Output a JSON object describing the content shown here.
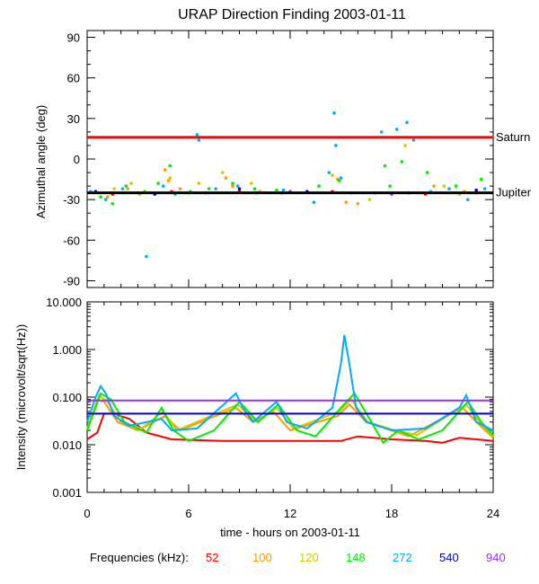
{
  "chart_data": [
    {
      "type": "scatter",
      "title": "URAP Direction Finding  2003-01-11",
      "xlabel": "",
      "ylabel": "Azimuthal angle (deg)",
      "xlim": [
        0,
        24
      ],
      "ylim": [
        -95,
        95
      ],
      "yticks": [
        90,
        60,
        30,
        0,
        -30,
        -60,
        -90
      ],
      "yticklabels": [
        "90",
        "60",
        "30",
        "0",
        "-30",
        "-60",
        "-90"
      ],
      "reference_lines": [
        {
          "name": "Saturn",
          "label": "Saturn",
          "y": 16,
          "color": "#ff0000"
        },
        {
          "name": "Jupiter",
          "label": "Jupiter",
          "y": -25,
          "color": "#000000"
        }
      ],
      "series": [
        {
          "name": "52",
          "color": "#ff0000",
          "points": [
            [
              1.5,
              -26
            ],
            [
              3.0,
              -25
            ],
            [
              5.0,
              -24
            ],
            [
              7.0,
              -25
            ],
            [
              9.0,
              -24
            ],
            [
              11.5,
              -25
            ],
            [
              14.5,
              -24
            ],
            [
              17.0,
              -25
            ],
            [
              20.0,
              -26
            ],
            [
              23.0,
              -25
            ]
          ]
        },
        {
          "name": "100",
          "color": "#ff9900",
          "points": [
            [
              1.2,
              -28
            ],
            [
              2.4,
              -22
            ],
            [
              4.6,
              -8
            ],
            [
              4.8,
              -16
            ],
            [
              5.5,
              -22
            ],
            [
              8.2,
              -14
            ],
            [
              8.6,
              -20
            ],
            [
              10.2,
              -24
            ],
            [
              14.8,
              -15
            ],
            [
              15.3,
              -32
            ],
            [
              16.0,
              -33
            ],
            [
              20.5,
              -20
            ],
            [
              22.3,
              -24
            ]
          ]
        },
        {
          "name": "120",
          "color": "#cccc00",
          "points": [
            [
              1.6,
              -22
            ],
            [
              2.6,
              -18
            ],
            [
              3.1,
              -26
            ],
            [
              4.9,
              -14
            ],
            [
              6.6,
              -18
            ],
            [
              8.0,
              -10
            ],
            [
              9.7,
              -18
            ],
            [
              14.5,
              -12
            ],
            [
              16.7,
              -30
            ],
            [
              18.8,
              10
            ],
            [
              21.1,
              -20
            ],
            [
              22.0,
              -26
            ]
          ]
        },
        {
          "name": "148",
          "color": "#00ee00",
          "points": [
            [
              0.8,
              -28
            ],
            [
              1.5,
              -33
            ],
            [
              2.3,
              -20
            ],
            [
              3.4,
              -24
            ],
            [
              4.2,
              -18
            ],
            [
              4.9,
              -5
            ],
            [
              6.1,
              -24
            ],
            [
              7.2,
              -22
            ],
            [
              8.6,
              -18
            ],
            [
              9.9,
              -22
            ],
            [
              11.2,
              -23
            ],
            [
              13.7,
              -20
            ],
            [
              14.9,
              -16
            ],
            [
              15.6,
              -25
            ],
            [
              17.6,
              -5
            ],
            [
              17.9,
              -20
            ],
            [
              18.6,
              -2
            ],
            [
              20.1,
              -10
            ],
            [
              21.8,
              -20
            ],
            [
              23.3,
              -15
            ]
          ]
        },
        {
          "name": "272",
          "color": "#00aaff",
          "points": [
            [
              0.2,
              -24
            ],
            [
              1.1,
              -30
            ],
            [
              2.1,
              -22
            ],
            [
              3.5,
              -72
            ],
            [
              4.5,
              -20
            ],
            [
              5.2,
              -26
            ],
            [
              6.5,
              18
            ],
            [
              6.6,
              14
            ],
            [
              7.6,
              -22
            ],
            [
              8.9,
              -20
            ],
            [
              10.0,
              -25
            ],
            [
              11.6,
              -23
            ],
            [
              13.4,
              -32
            ],
            [
              14.3,
              -10
            ],
            [
              14.6,
              34
            ],
            [
              14.7,
              10
            ],
            [
              15.0,
              -14
            ],
            [
              17.4,
              20
            ],
            [
              18.3,
              22
            ],
            [
              18.9,
              27
            ],
            [
              19.3,
              14
            ],
            [
              20.3,
              -24
            ],
            [
              21.4,
              -22
            ],
            [
              22.5,
              -30
            ],
            [
              23.5,
              -22
            ]
          ]
        },
        {
          "name": "540",
          "color": "#0000cc",
          "points": [
            [
              0.5,
              -24
            ],
            [
              4.0,
              -26
            ],
            [
              9.0,
              -22
            ],
            [
              13.0,
              -24
            ],
            [
              19.0,
              -25
            ],
            [
              23.0,
              -23
            ]
          ]
        },
        {
          "name": "940",
          "color": "#9933ee",
          "points": [
            [
              6.0,
              -25
            ],
            [
              12.0,
              -24
            ],
            [
              18.0,
              -26
            ]
          ]
        }
      ]
    },
    {
      "type": "line",
      "title": "",
      "xlabel": "time - hours on 2003-01-11",
      "ylabel": "Intensity (microvolt/sqrt(Hz))",
      "xlim": [
        0,
        24
      ],
      "xticks": [
        0,
        6,
        12,
        18,
        24
      ],
      "xticklabels": [
        "0",
        "6",
        "12",
        "18",
        "24"
      ],
      "yscale": "log",
      "ylim": [
        0.001,
        10
      ],
      "yticks": [
        10,
        1,
        0.1,
        0.01,
        0.001
      ],
      "yticklabels": [
        "10.000",
        "1.000",
        "0.100",
        "0.010",
        "0.001"
      ],
      "series": [
        {
          "name": "52",
          "color": "#ff0000",
          "points": [
            [
              0,
              0.013
            ],
            [
              0.6,
              0.018
            ],
            [
              1.0,
              0.045
            ],
            [
              1.5,
              0.045
            ],
            [
              2.5,
              0.035
            ],
            [
              3.5,
              0.018
            ],
            [
              5.0,
              0.013
            ],
            [
              8.0,
              0.012
            ],
            [
              12.0,
              0.012
            ],
            [
              15.0,
              0.012
            ],
            [
              16.0,
              0.015
            ],
            [
              18.0,
              0.013
            ],
            [
              20.0,
              0.012
            ],
            [
              21.0,
              0.011
            ],
            [
              22.0,
              0.014
            ],
            [
              23.0,
              0.013
            ],
            [
              24.0,
              0.012
            ]
          ]
        },
        {
          "name": "100",
          "color": "#ff9900",
          "points": [
            [
              0,
              0.02
            ],
            [
              0.6,
              0.09
            ],
            [
              1.0,
              0.08
            ],
            [
              1.8,
              0.03
            ],
            [
              3.0,
              0.02
            ],
            [
              4.6,
              0.04
            ],
            [
              5.5,
              0.02
            ],
            [
              8.8,
              0.06
            ],
            [
              9.8,
              0.03
            ],
            [
              11.0,
              0.05
            ],
            [
              12.0,
              0.02
            ],
            [
              14.8,
              0.04
            ],
            [
              15.5,
              0.07
            ],
            [
              16.5,
              0.03
            ],
            [
              18.0,
              0.02
            ],
            [
              19.0,
              0.015
            ],
            [
              22.2,
              0.06
            ],
            [
              23.0,
              0.03
            ],
            [
              24.0,
              0.014
            ]
          ]
        },
        {
          "name": "120",
          "color": "#cccc00",
          "points": [
            [
              0,
              0.022
            ],
            [
              0.7,
              0.11
            ],
            [
              1.2,
              0.08
            ],
            [
              2.0,
              0.03
            ],
            [
              3.2,
              0.022
            ],
            [
              4.5,
              0.05
            ],
            [
              5.3,
              0.02
            ],
            [
              8.9,
              0.07
            ],
            [
              10.0,
              0.03
            ],
            [
              11.2,
              0.06
            ],
            [
              12.2,
              0.022
            ],
            [
              14.9,
              0.05
            ],
            [
              15.6,
              0.09
            ],
            [
              16.6,
              0.03
            ],
            [
              18.2,
              0.02
            ],
            [
              19.5,
              0.016
            ],
            [
              22.4,
              0.07
            ],
            [
              23.2,
              0.03
            ],
            [
              24.0,
              0.015
            ]
          ]
        },
        {
          "name": "148",
          "color": "#00ee00",
          "points": [
            [
              0,
              0.02
            ],
            [
              0.8,
              0.12
            ],
            [
              1.4,
              0.09
            ],
            [
              2.2,
              0.03
            ],
            [
              3.5,
              0.018
            ],
            [
              4.4,
              0.06
            ],
            [
              5.1,
              0.02
            ],
            [
              6.0,
              0.012
            ],
            [
              7.5,
              0.02
            ],
            [
              9.0,
              0.08
            ],
            [
              10.1,
              0.03
            ],
            [
              11.3,
              0.07
            ],
            [
              12.4,
              0.02
            ],
            [
              13.5,
              0.015
            ],
            [
              15.0,
              0.06
            ],
            [
              15.8,
              0.12
            ],
            [
              16.8,
              0.03
            ],
            [
              17.5,
              0.011
            ],
            [
              18.4,
              0.02
            ],
            [
              19.6,
              0.013
            ],
            [
              21.0,
              0.02
            ],
            [
              22.5,
              0.08
            ],
            [
              23.3,
              0.03
            ],
            [
              24.0,
              0.016
            ]
          ]
        },
        {
          "name": "272",
          "color": "#00aaff",
          "points": [
            [
              0,
              0.03
            ],
            [
              0.5,
              0.1
            ],
            [
              0.8,
              0.17
            ],
            [
              1.1,
              0.12
            ],
            [
              1.6,
              0.04
            ],
            [
              2.5,
              0.025
            ],
            [
              4.4,
              0.035
            ],
            [
              5.0,
              0.02
            ],
            [
              6.5,
              0.022
            ],
            [
              8.8,
              0.12
            ],
            [
              9.2,
              0.06
            ],
            [
              9.8,
              0.03
            ],
            [
              11.2,
              0.08
            ],
            [
              11.8,
              0.03
            ],
            [
              13.0,
              0.022
            ],
            [
              14.5,
              0.06
            ],
            [
              15.0,
              0.5
            ],
            [
              15.2,
              2.0
            ],
            [
              15.5,
              0.5
            ],
            [
              15.9,
              0.06
            ],
            [
              16.5,
              0.03
            ],
            [
              18.0,
              0.02
            ],
            [
              20.0,
              0.022
            ],
            [
              22.0,
              0.06
            ],
            [
              22.4,
              0.11
            ],
            [
              23.0,
              0.03
            ],
            [
              24.0,
              0.02
            ]
          ]
        },
        {
          "name": "540",
          "color": "#0000cc",
          "points": [
            [
              0,
              0.045
            ],
            [
              24,
              0.045
            ]
          ]
        },
        {
          "name": "940",
          "color": "#9933ee",
          "points": [
            [
              0,
              0.085
            ],
            [
              24,
              0.085
            ]
          ]
        }
      ]
    }
  ],
  "frequencies": {
    "label": "Frequencies (kHz):",
    "items": [
      {
        "text": "52",
        "color": "#ff0000"
      },
      {
        "text": "100",
        "color": "#ff9900"
      },
      {
        "text": "120",
        "color": "#cccc00"
      },
      {
        "text": "148",
        "color": "#00ee00"
      },
      {
        "text": "272",
        "color": "#00aaff"
      },
      {
        "text": "540",
        "color": "#0000cc"
      },
      {
        "text": "940",
        "color": "#9933ee"
      }
    ]
  }
}
